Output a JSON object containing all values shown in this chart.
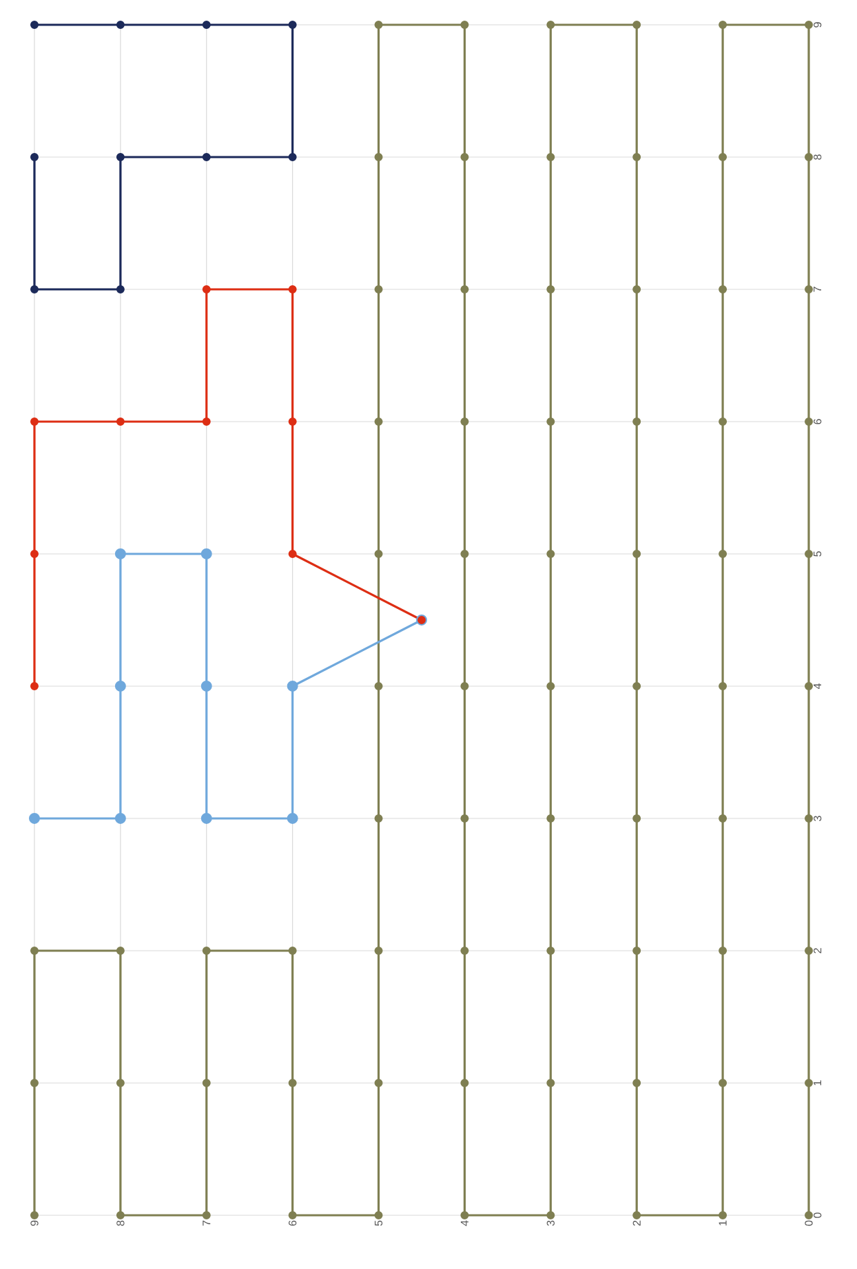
{
  "chart_data": {
    "type": "line",
    "series": [
      {
        "color": "#7f7f52",
        "x": [
          0,
          0,
          0,
          0,
          0,
          0,
          0,
          0,
          0,
          0,
          1,
          1,
          1,
          1,
          1,
          1,
          1,
          1,
          1,
          1,
          2,
          2,
          2,
          2,
          2,
          2,
          2,
          2,
          2,
          2,
          3,
          3,
          3,
          3,
          3,
          3,
          3,
          3,
          3,
          3,
          4,
          4,
          4,
          4,
          4,
          4,
          4,
          4,
          4,
          4,
          5,
          5,
          5,
          5,
          5,
          5,
          5,
          5,
          5,
          5,
          6,
          6,
          6,
          7,
          7,
          7,
          8,
          8,
          8,
          9,
          9,
          9
        ],
        "values": [
          0,
          1,
          2,
          3,
          4,
          5,
          6,
          7,
          8,
          9,
          9,
          8,
          7,
          6,
          5,
          4,
          3,
          2,
          1,
          0,
          0,
          1,
          2,
          3,
          4,
          5,
          6,
          7,
          8,
          9,
          9,
          8,
          7,
          6,
          5,
          4,
          3,
          2,
          1,
          0,
          0,
          1,
          2,
          3,
          4,
          5,
          6,
          7,
          8,
          9,
          9,
          8,
          7,
          6,
          5,
          4,
          3,
          2,
          1,
          0,
          0,
          1,
          2,
          2,
          1,
          0,
          0,
          1,
          2,
          2,
          1,
          0
        ]
      },
      {
        "color": "#6fa8dc",
        "x": [
          9,
          8,
          8,
          8,
          7,
          7,
          7,
          6,
          6,
          4.5
        ],
        "values": [
          3,
          3,
          4,
          5,
          5,
          4,
          3,
          3,
          4,
          4.5
        ]
      },
      {
        "color": "#dd2e14",
        "x": [
          4.5,
          6,
          6,
          6,
          7,
          7,
          8,
          9,
          9,
          9
        ],
        "values": [
          4.5,
          5,
          6,
          7,
          7,
          6,
          6,
          6,
          5,
          4
        ]
      },
      {
        "color": "#1c2a5a",
        "x": [
          9,
          8,
          7,
          6,
          6,
          7,
          8,
          8,
          9,
          9
        ],
        "values": [
          9,
          9,
          9,
          9,
          8,
          8,
          8,
          7,
          7,
          8
        ]
      }
    ],
    "xlim": [
      9,
      0
    ],
    "ylim": [
      0,
      9
    ],
    "xticks": [
      0,
      1,
      2,
      3,
      4,
      5,
      6,
      7,
      8,
      9
    ],
    "yticks": [
      0,
      1,
      2,
      3,
      4,
      5,
      6,
      7,
      8,
      9
    ],
    "grid": true,
    "marker": "circle",
    "line_style": "solid"
  }
}
